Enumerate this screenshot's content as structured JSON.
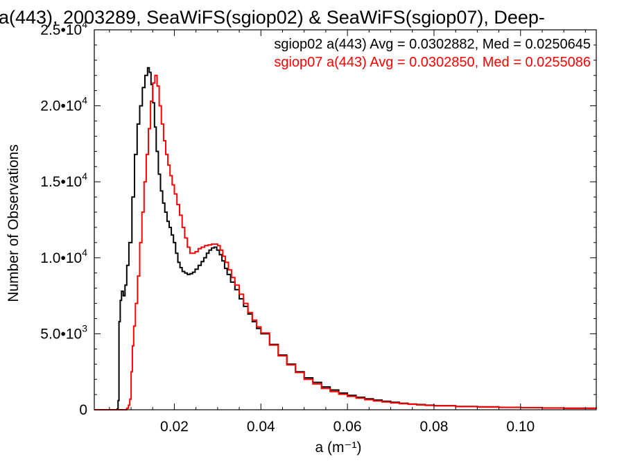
{
  "chart_data": {
    "type": "line",
    "title": "a(443), 2003289, SeaWiFS(sgiop02) & SeaWiFS(sgiop07), Deep-",
    "xlabel": "a (m⁻¹)",
    "ylabel": "Number of Observations",
    "xlim": [
      0.0015,
      0.1175
    ],
    "ylim": [
      0,
      25000
    ],
    "x_ticks": [
      0.02,
      0.04,
      0.06,
      0.08,
      0.1
    ],
    "x_tick_labels": [
      "0.02",
      "0.04",
      "0.06",
      "0.08",
      "0.10"
    ],
    "y_ticks": [
      0,
      5000,
      10000,
      15000,
      20000,
      25000
    ],
    "y_tick_labels": [
      {
        "mantissa": "0",
        "exponent": ""
      },
      {
        "mantissa": "5.0•10",
        "exponent": "3"
      },
      {
        "mantissa": "1.0•10",
        "exponent": "4"
      },
      {
        "mantissa": "1.5•10",
        "exponent": "4"
      },
      {
        "mantissa": "2.0•10",
        "exponent": "4"
      },
      {
        "mantissa": "2.5•10",
        "exponent": "4"
      }
    ],
    "grid": false,
    "legend_position": "top-right",
    "series": [
      {
        "label": "sgiop02 a(443) Avg = 0.0302882, Med = 0.0250645",
        "color": "#000000",
        "points": [
          [
            0.0015,
            0
          ],
          [
            0.006,
            0
          ],
          [
            0.0068,
            50
          ],
          [
            0.007,
            600
          ],
          [
            0.0072,
            5800
          ],
          [
            0.0075,
            7200
          ],
          [
            0.0078,
            7800
          ],
          [
            0.0082,
            7500
          ],
          [
            0.0086,
            8200
          ],
          [
            0.009,
            9500
          ],
          [
            0.0095,
            11000
          ],
          [
            0.0102,
            14000
          ],
          [
            0.0108,
            16800
          ],
          [
            0.0114,
            18800
          ],
          [
            0.012,
            20000
          ],
          [
            0.0126,
            21200
          ],
          [
            0.0132,
            22000
          ],
          [
            0.0138,
            22500
          ],
          [
            0.0142,
            22200
          ],
          [
            0.0146,
            21400
          ],
          [
            0.015,
            20200
          ],
          [
            0.0154,
            18600
          ],
          [
            0.0158,
            17000
          ],
          [
            0.0163,
            15500
          ],
          [
            0.0168,
            14400
          ],
          [
            0.0173,
            13600
          ],
          [
            0.0178,
            13000
          ],
          [
            0.0183,
            12400
          ],
          [
            0.0188,
            12000
          ],
          [
            0.0193,
            11500
          ],
          [
            0.0198,
            11000
          ],
          [
            0.0203,
            10300
          ],
          [
            0.0208,
            9700
          ],
          [
            0.0213,
            9350
          ],
          [
            0.0218,
            9100
          ],
          [
            0.0224,
            9000
          ],
          [
            0.023,
            8900
          ],
          [
            0.0236,
            8950
          ],
          [
            0.0242,
            9050
          ],
          [
            0.0248,
            9250
          ],
          [
            0.0255,
            9500
          ],
          [
            0.0262,
            9750
          ],
          [
            0.0268,
            10000
          ],
          [
            0.0274,
            10300
          ],
          [
            0.028,
            10500
          ],
          [
            0.0286,
            10650
          ],
          [
            0.0292,
            10700
          ],
          [
            0.0298,
            10500
          ],
          [
            0.0304,
            10200
          ],
          [
            0.031,
            9800
          ],
          [
            0.0316,
            9300
          ],
          [
            0.0322,
            8900
          ],
          [
            0.033,
            8400
          ],
          [
            0.034,
            7900
          ],
          [
            0.035,
            7300
          ],
          [
            0.036,
            6800
          ],
          [
            0.037,
            6300
          ],
          [
            0.038,
            5800
          ],
          [
            0.039,
            5350
          ],
          [
            0.04,
            5000
          ],
          [
            0.042,
            4300
          ],
          [
            0.044,
            3600
          ],
          [
            0.046,
            3000
          ],
          [
            0.048,
            2500
          ],
          [
            0.05,
            2100
          ],
          [
            0.052,
            1800
          ],
          [
            0.054,
            1500
          ],
          [
            0.056,
            1300
          ],
          [
            0.058,
            1100
          ],
          [
            0.06,
            950
          ],
          [
            0.062,
            820
          ],
          [
            0.064,
            720
          ],
          [
            0.066,
            640
          ],
          [
            0.068,
            560
          ],
          [
            0.07,
            490
          ],
          [
            0.072,
            430
          ],
          [
            0.074,
            380
          ],
          [
            0.076,
            340
          ],
          [
            0.078,
            300
          ],
          [
            0.08,
            270
          ],
          [
            0.085,
            220
          ],
          [
            0.09,
            190
          ],
          [
            0.095,
            160
          ],
          [
            0.1,
            140
          ],
          [
            0.105,
            120
          ],
          [
            0.11,
            100
          ],
          [
            0.1175,
            80
          ]
        ]
      },
      {
        "label": "sgiop07 a(443) Avg = 0.0302850, Med = 0.0255086",
        "color": "#ff0000",
        "points": [
          [
            0.0015,
            0
          ],
          [
            0.0085,
            0
          ],
          [
            0.009,
            100
          ],
          [
            0.0094,
            300
          ],
          [
            0.0097,
            700
          ],
          [
            0.01,
            2500
          ],
          [
            0.0103,
            4200
          ],
          [
            0.0106,
            5500
          ],
          [
            0.011,
            7000
          ],
          [
            0.0115,
            8800
          ],
          [
            0.012,
            11000
          ],
          [
            0.0125,
            13000
          ],
          [
            0.013,
            15000
          ],
          [
            0.0135,
            16800
          ],
          [
            0.014,
            18500
          ],
          [
            0.0145,
            20300
          ],
          [
            0.015,
            21500
          ],
          [
            0.0155,
            22000
          ],
          [
            0.016,
            21300
          ],
          [
            0.0165,
            20000
          ],
          [
            0.017,
            18800
          ],
          [
            0.0175,
            17700
          ],
          [
            0.018,
            16800
          ],
          [
            0.0185,
            16100
          ],
          [
            0.019,
            15400
          ],
          [
            0.0195,
            14800
          ],
          [
            0.02,
            14200
          ],
          [
            0.0206,
            13500
          ],
          [
            0.0212,
            12800
          ],
          [
            0.0218,
            12000
          ],
          [
            0.0224,
            11300
          ],
          [
            0.023,
            10700
          ],
          [
            0.0236,
            10300
          ],
          [
            0.0242,
            10300
          ],
          [
            0.0248,
            10400
          ],
          [
            0.0255,
            10600
          ],
          [
            0.0262,
            10700
          ],
          [
            0.027,
            10800
          ],
          [
            0.0278,
            10850
          ],
          [
            0.0286,
            10900
          ],
          [
            0.0294,
            10900
          ],
          [
            0.03,
            10800
          ],
          [
            0.0306,
            10500
          ],
          [
            0.0312,
            10100
          ],
          [
            0.0318,
            9700
          ],
          [
            0.0325,
            9200
          ],
          [
            0.0332,
            8700
          ],
          [
            0.034,
            8200
          ],
          [
            0.035,
            7600
          ],
          [
            0.036,
            7000
          ],
          [
            0.037,
            6400
          ],
          [
            0.038,
            5900
          ],
          [
            0.039,
            5450
          ],
          [
            0.04,
            5050
          ],
          [
            0.042,
            4250
          ],
          [
            0.044,
            3550
          ],
          [
            0.046,
            2950
          ],
          [
            0.048,
            2450
          ],
          [
            0.05,
            2000
          ],
          [
            0.052,
            1700
          ],
          [
            0.054,
            1400
          ],
          [
            0.056,
            1200
          ],
          [
            0.058,
            1020
          ],
          [
            0.06,
            880
          ],
          [
            0.062,
            760
          ],
          [
            0.064,
            660
          ],
          [
            0.066,
            580
          ],
          [
            0.068,
            510
          ],
          [
            0.07,
            450
          ],
          [
            0.072,
            400
          ],
          [
            0.074,
            360
          ],
          [
            0.076,
            320
          ],
          [
            0.078,
            285
          ],
          [
            0.08,
            255
          ],
          [
            0.085,
            210
          ],
          [
            0.09,
            180
          ],
          [
            0.095,
            155
          ],
          [
            0.1,
            135
          ],
          [
            0.105,
            115
          ],
          [
            0.11,
            95
          ],
          [
            0.1175,
            75
          ]
        ]
      }
    ]
  }
}
